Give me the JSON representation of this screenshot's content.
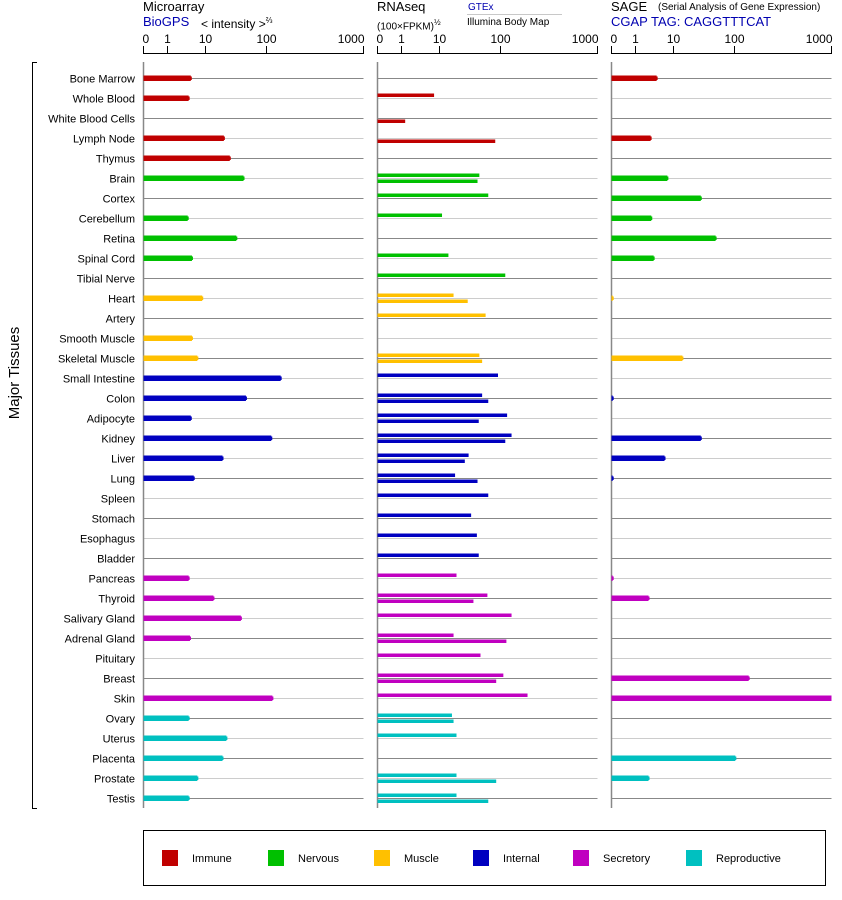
{
  "headers": {
    "microarray": {
      "title": "Microarray",
      "source": "BioGPS",
      "unit": "< intensity >",
      "unit_exp": "⅔"
    },
    "rnaseq": {
      "title": "RNAseq",
      "unit": "(100×FPKM)",
      "unit_exp": "½",
      "source1": "GTEx",
      "source2": "Illumina Body Map"
    },
    "sage": {
      "title": "SAGE",
      "subtitle": "(Serial Analysis of Gene Expression)",
      "tag": "CGAP TAG: CAGGTTTCAT"
    }
  },
  "chart_data": {
    "type": "bar",
    "orientation": "horizontal",
    "ylabel": "Major Tissues",
    "axis_ticks": [
      "0",
      "1",
      "10",
      "100",
      "1000"
    ],
    "xlim": [
      0,
      1000
    ],
    "groups": {
      "immune": {
        "label": "Immune",
        "color": "#c00000"
      },
      "nervous": {
        "label": "Nervous",
        "color": "#00c000"
      },
      "muscle": {
        "label": "Muscle",
        "color": "#ffc000"
      },
      "internal": {
        "label": "Internal",
        "color": "#0000c0"
      },
      "secretory": {
        "label": "Secretory",
        "color": "#c000c0"
      },
      "reproductive": {
        "label": "Reproductive",
        "color": "#00c0c0"
      }
    },
    "legend_order": [
      "immune",
      "nervous",
      "muscle",
      "internal",
      "secretory",
      "reproductive"
    ],
    "legend_placement": "bottom",
    "series": [
      "microarray",
      "gtex",
      "illumina",
      "sage"
    ],
    "tissues": [
      {
        "name": "Bone Marrow",
        "group": "immune",
        "microarray": 4.1,
        "gtex": null,
        "illumina": null,
        "sage": 3.6
      },
      {
        "name": "Whole Blood",
        "group": "immune",
        "microarray": 3.6,
        "gtex": 7.2,
        "illumina": null,
        "sage": null
      },
      {
        "name": "White Blood Cells",
        "group": "immune",
        "microarray": null,
        "gtex": null,
        "illumina": 1.25,
        "sage": null
      },
      {
        "name": "Lymph Node",
        "group": "immune",
        "microarray": 20,
        "gtex": null,
        "illumina": 82,
        "sage": 2.5
      },
      {
        "name": "Thymus",
        "group": "immune",
        "microarray": 25,
        "gtex": null,
        "illumina": null,
        "sage": null
      },
      {
        "name": "Brain",
        "group": "nervous",
        "microarray": 42,
        "gtex": 45,
        "illumina": 42,
        "sage": 6.9
      },
      {
        "name": "Cortex",
        "group": "nervous",
        "microarray": null,
        "gtex": 63,
        "illumina": null,
        "sage": 28
      },
      {
        "name": "Cerebellum",
        "group": "nervous",
        "microarray": 3.4,
        "gtex": 11,
        "illumina": null,
        "sage": 2.6
      },
      {
        "name": "Retina",
        "group": "nervous",
        "microarray": 32,
        "gtex": null,
        "illumina": null,
        "sage": 49
      },
      {
        "name": "Spinal Cord",
        "group": "nervous",
        "microarray": 4.4,
        "gtex": 14,
        "illumina": null,
        "sage": 3
      },
      {
        "name": "Tibial Nerve",
        "group": "nervous",
        "microarray": null,
        "gtex": 112,
        "illumina": null,
        "sage": null
      },
      {
        "name": "Heart",
        "group": "muscle",
        "microarray": 8.2,
        "gtex": 17,
        "illumina": 29,
        "sage": 0.05
      },
      {
        "name": "Artery",
        "group": "muscle",
        "microarray": null,
        "gtex": 57,
        "illumina": null,
        "sage": null
      },
      {
        "name": "Smooth Muscle",
        "group": "muscle",
        "microarray": 4.4,
        "gtex": null,
        "illumina": null,
        "sage": null
      },
      {
        "name": "Skeletal Muscle",
        "group": "muscle",
        "microarray": 6.1,
        "gtex": 45,
        "illumina": 50,
        "sage": 14
      },
      {
        "name": "Small Intestine",
        "group": "internal",
        "microarray": 140,
        "gtex": 91,
        "illumina": null,
        "sage": null
      },
      {
        "name": "Colon",
        "group": "internal",
        "microarray": 46,
        "gtex": 50,
        "illumina": 63,
        "sage": 0.05
      },
      {
        "name": "Adipocyte",
        "group": "internal",
        "microarray": 4.1,
        "gtex": 117,
        "illumina": 44,
        "sage": null
      },
      {
        "name": "Kidney",
        "group": "internal",
        "microarray": 112,
        "gtex": 130,
        "illumina": 112,
        "sage": 28
      },
      {
        "name": "Liver",
        "group": "internal",
        "microarray": 19,
        "gtex": 30,
        "illumina": 26,
        "sage": 5.8
      },
      {
        "name": "Lung",
        "group": "internal",
        "microarray": 4.9,
        "gtex": 18,
        "illumina": 42,
        "sage": 0.05
      },
      {
        "name": "Spleen",
        "group": "internal",
        "microarray": null,
        "gtex": 63,
        "illumina": null,
        "sage": null
      },
      {
        "name": "Stomach",
        "group": "internal",
        "microarray": null,
        "gtex": 33,
        "illumina": null,
        "sage": null
      },
      {
        "name": "Esophagus",
        "group": "internal",
        "microarray": null,
        "gtex": 41,
        "illumina": null,
        "sage": null
      },
      {
        "name": "Bladder",
        "group": "internal",
        "microarray": null,
        "gtex": 44,
        "illumina": null,
        "sage": null
      },
      {
        "name": "Pancreas",
        "group": "secretory",
        "microarray": 3.6,
        "gtex": 19,
        "illumina": null,
        "sage": 0.05
      },
      {
        "name": "Thyroid",
        "group": "secretory",
        "microarray": 13.5,
        "gtex": 61,
        "illumina": 36,
        "sage": 2.2
      },
      {
        "name": "Salivary Gland",
        "group": "secretory",
        "microarray": 38,
        "gtex": 130,
        "illumina": null,
        "sage": null
      },
      {
        "name": "Adrenal Gland",
        "group": "secretory",
        "microarray": 3.9,
        "gtex": 17,
        "illumina": 115,
        "sage": null
      },
      {
        "name": "Pituitary",
        "group": "secretory",
        "microarray": null,
        "gtex": 47,
        "illumina": null,
        "sage": null
      },
      {
        "name": "Breast",
        "group": "secretory",
        "microarray": null,
        "gtex": 107,
        "illumina": 85,
        "sage": 140
      },
      {
        "name": "Skin",
        "group": "secretory",
        "microarray": 115,
        "gtex": 190,
        "illumina": null,
        "sage": 1000
      },
      {
        "name": "Ovary",
        "group": "reproductive",
        "microarray": 3.6,
        "gtex": 16,
        "illumina": 17,
        "sage": null
      },
      {
        "name": "Uterus",
        "group": "reproductive",
        "microarray": 22,
        "gtex": 19,
        "illumina": null,
        "sage": null
      },
      {
        "name": "Placenta",
        "group": "reproductive",
        "microarray": 19,
        "gtex": null,
        "illumina": null,
        "sage": 102
      },
      {
        "name": "Prostate",
        "group": "reproductive",
        "microarray": 6.1,
        "gtex": 19,
        "illumina": 85,
        "sage": 2.2
      },
      {
        "name": "Testis",
        "group": "reproductive",
        "microarray": 3.6,
        "gtex": 19,
        "illumina": 63,
        "sage": null
      }
    ]
  }
}
